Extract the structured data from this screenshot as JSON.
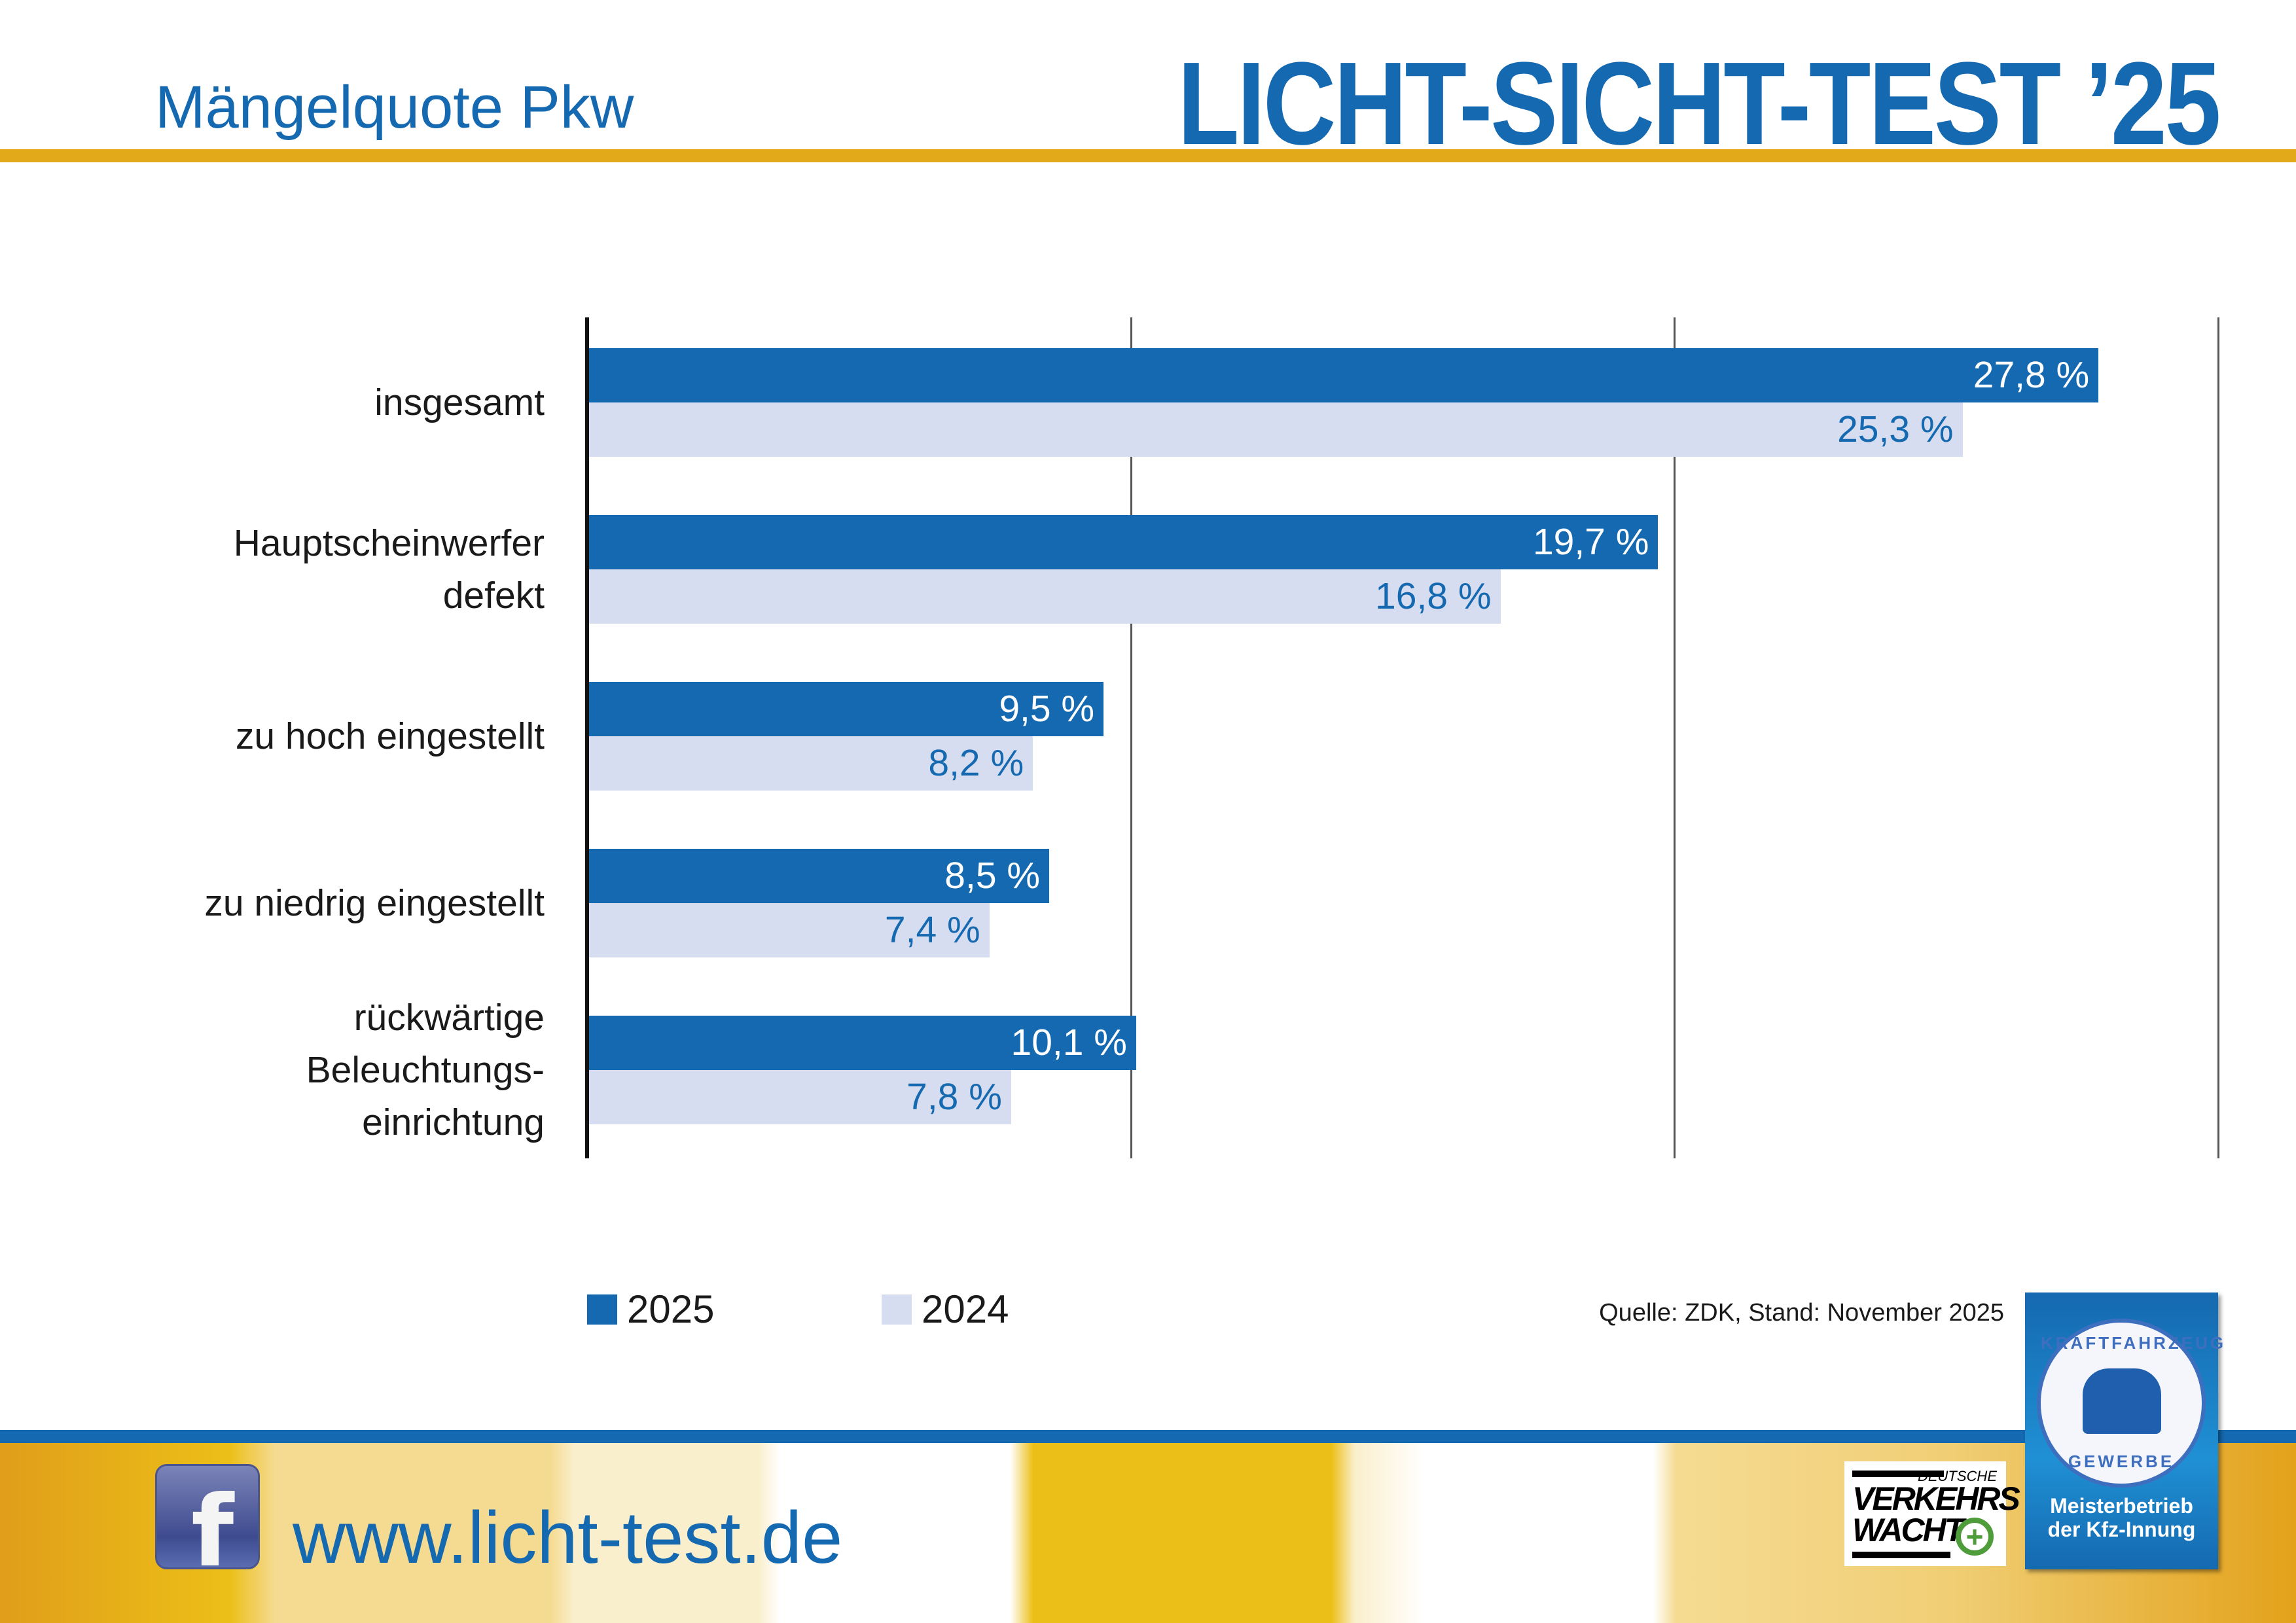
{
  "header": {
    "subtitle": "Mängelquote Pkw",
    "title": "LICHT-SICHT-TEST ’25"
  },
  "colors": {
    "brand_blue": "#1569b0",
    "light_bar": "#d7ddf0",
    "gold": "#e2a91a"
  },
  "chart_data": {
    "type": "bar",
    "orientation": "horizontal",
    "categories": [
      "insgesamt",
      "Hauptscheinwerfer defekt",
      "zu hoch eingestellt",
      "zu niedrig eingestellt",
      "rückwärtige Beleuchtungs- einrichtung"
    ],
    "category_lines": [
      [
        "insgesamt"
      ],
      [
        "Hauptscheinwerfer",
        "defekt"
      ],
      [
        "zu hoch eingestellt"
      ],
      [
        "zu niedrig eingestellt"
      ],
      [
        "rückwärtige",
        "Beleuchtungs-",
        "einrichtung"
      ]
    ],
    "series": [
      {
        "name": "2025",
        "color": "#1569b0",
        "values": [
          27.8,
          19.7,
          9.5,
          8.5,
          10.1
        ],
        "labels": [
          "27,8 %",
          "19,7 %",
          "9,5 %",
          "8,5 %",
          "10,1 %"
        ]
      },
      {
        "name": "2024",
        "color": "#d7ddf0",
        "values": [
          25.3,
          16.8,
          8.2,
          7.4,
          7.8
        ],
        "labels": [
          "25,3 %",
          "16,8 %",
          "8,2 %",
          "7,4 %",
          "7,8 %"
        ]
      }
    ],
    "xlim": [
      0,
      30
    ],
    "grid": true,
    "gridlines": [
      10,
      20,
      30
    ],
    "legend_position": "bottom-left"
  },
  "footer": {
    "source": "Quelle: ZDK, Stand: November 2025",
    "url": "www.licht-test.de",
    "facebook_icon": "facebook-icon",
    "logo_vw": {
      "line1": "DEUTSCHE",
      "line2": "VERKEHRS",
      "line3": "WACHT"
    },
    "logo_kfz": {
      "top": "KRAFTFAHRZEUG",
      "bottom": "GEWERBE",
      "line1": "Meisterbetrieb",
      "line2": "der Kfz-Innung"
    }
  }
}
